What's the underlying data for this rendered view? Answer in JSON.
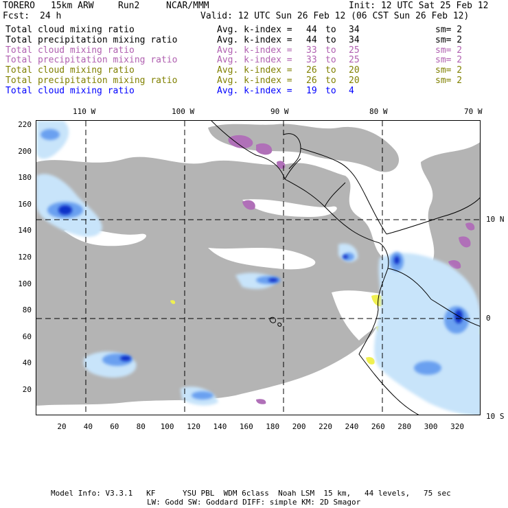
{
  "header": {
    "model": "TORERO",
    "grid": "15km ARW",
    "run": "Run2",
    "org": "NCAR/MMM",
    "init": "Init: 12 UTC Sat 25 Feb 12",
    "fcst_label": "Fcst:",
    "fcst_value": "24 h",
    "valid": "Valid: 12 UTC Sun 26 Feb 12 (06 CST Sun 26 Feb 12)"
  },
  "legend": [
    {
      "field": "Total cloud mixing ratio",
      "kindex_label": "Avg. k-index =",
      "from": "44",
      "to_word": "to",
      "to": "34",
      "sm": "sm= 2",
      "color": "#000000"
    },
    {
      "field": "Total precipitation mixing ratio",
      "kindex_label": "Avg. k-index =",
      "from": "44",
      "to_word": "to",
      "to": "34",
      "sm": "sm= 2",
      "color": "#000000"
    },
    {
      "field": "Total cloud mixing ratio",
      "kindex_label": "Avg. k-index =",
      "from": "33",
      "to_word": "to",
      "to": "25",
      "sm": "sm= 2",
      "color": "#b060b0"
    },
    {
      "field": "Total precipitation mixing ratio",
      "kindex_label": "Avg. k-index =",
      "from": "33",
      "to_word": "to",
      "to": "25",
      "sm": "sm= 2",
      "color": "#b060b0"
    },
    {
      "field": "Total cloud mixing ratio",
      "kindex_label": "Avg. k-index =",
      "from": "26",
      "to_word": "to",
      "to": "20",
      "sm": "sm= 2",
      "color": "#808000"
    },
    {
      "field": "Total precipitation mixing ratio",
      "kindex_label": "Avg. k-index =",
      "from": "26",
      "to_word": "to",
      "to": "20",
      "sm": "sm= 2",
      "color": "#808000"
    },
    {
      "field": "Total cloud mixing ratio",
      "kindex_label": "Avg. k-index =",
      "from": "19",
      "to_word": "to",
      "to": "4",
      "sm": "",
      "color": "#0000ff"
    }
  ],
  "axes": {
    "top_lon_labels": [
      "110 W",
      "100 W",
      "90 W",
      "80 W",
      "70 W"
    ],
    "right_lat_labels": [
      "10 N",
      "0",
      "10 S"
    ],
    "x_ticks": [
      "20",
      "40",
      "60",
      "80",
      "100",
      "120",
      "140",
      "160",
      "180",
      "200",
      "220",
      "240",
      "260",
      "280",
      "300",
      "320"
    ],
    "y_ticks": [
      "220",
      "200",
      "180",
      "160",
      "140",
      "120",
      "100",
      "80",
      "60",
      "40",
      "20"
    ]
  },
  "colors": {
    "cloud_gray": "#b4b4b4",
    "purple": "#b070b8",
    "yellow": "#f0f050",
    "light_blue": "#c8e4fa",
    "mid_blue": "#6aa0f0",
    "dark_blue": "#1030c8"
  },
  "footer": {
    "line1": "Model Info: V3.3.1   KF      YSU PBL  WDM 6class  Noah LSM  15 km,   44 levels,   75 sec",
    "line2": "LW: Godd SW: Goddard DIFF: simple KM: 2D Smagor"
  }
}
